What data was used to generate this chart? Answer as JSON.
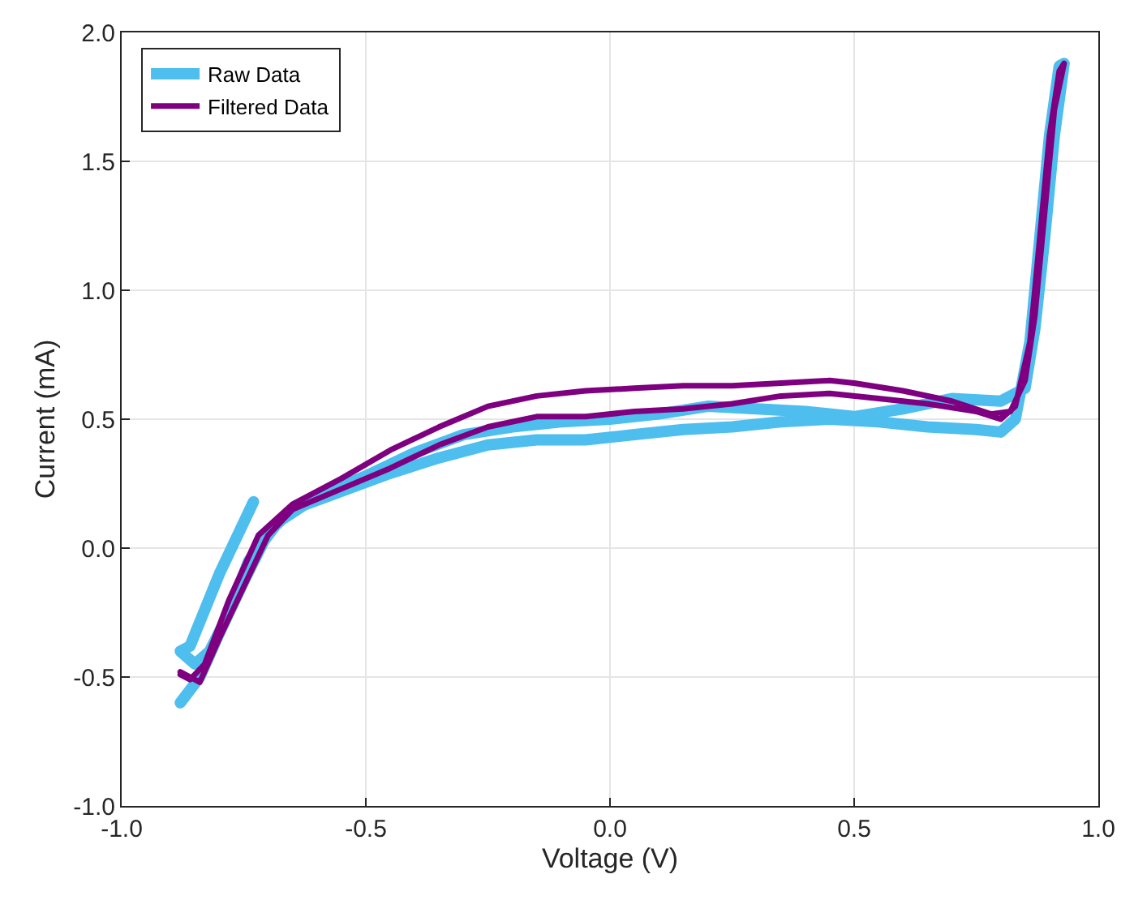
{
  "chart_data": {
    "type": "line",
    "xlabel": "Voltage (V)",
    "ylabel": "Current (mA)",
    "xlim": [
      -1,
      1
    ],
    "xticks": [
      {
        "value": -1,
        "label": "-1.0"
      },
      {
        "value": -0.5,
        "label": "-0.5"
      },
      {
        "value": 0,
        "label": "0.0"
      },
      {
        "value": 0.5,
        "label": "0.5"
      },
      {
        "value": 1,
        "label": "1.0"
      }
    ],
    "ylim": [
      -1,
      2
    ],
    "yticks": [
      {
        "value": -1,
        "label": "-1.0"
      },
      {
        "value": -0.5,
        "label": "-0.5"
      },
      {
        "value": 0,
        "label": "0.0"
      },
      {
        "value": 0.5,
        "label": "0.5"
      },
      {
        "value": 1,
        "label": "1.0"
      },
      {
        "value": 1.5,
        "label": "1.5"
      },
      {
        "value": 2,
        "label": "2.0"
      }
    ],
    "grid": true,
    "legend": "top left",
    "marker": "none",
    "line_style": "solid",
    "series": [
      {
        "name": "Raw Data",
        "color": "#4dbeee",
        "x": [
          -0.88,
          -0.86,
          -0.84,
          -0.8,
          -0.75,
          -0.7,
          -0.65,
          -0.55,
          -0.45,
          -0.35,
          -0.25,
          -0.15,
          -0.05,
          0.05,
          0.15,
          0.25,
          0.35,
          0.45,
          0.55,
          0.65,
          0.75,
          0.8,
          0.83,
          0.86,
          0.88,
          0.9,
          0.92,
          0.93,
          0.91,
          0.89,
          0.87,
          0.85,
          0.8,
          0.7,
          0.6,
          0.5,
          0.4,
          0.3,
          0.2,
          0.1,
          0.0,
          -0.1,
          -0.2,
          -0.3,
          -0.4,
          -0.5,
          -0.6,
          -0.68,
          -0.74,
          -0.78,
          -0.82,
          -0.85,
          -0.88,
          -0.86,
          -0.8,
          -0.73
        ],
        "values": [
          -0.6,
          -0.55,
          -0.5,
          -0.33,
          -0.13,
          0.06,
          0.15,
          0.22,
          0.29,
          0.35,
          0.4,
          0.42,
          0.42,
          0.44,
          0.46,
          0.47,
          0.49,
          0.5,
          0.49,
          0.47,
          0.46,
          0.45,
          0.5,
          0.8,
          1.2,
          1.6,
          1.87,
          1.88,
          1.6,
          1.2,
          0.85,
          0.62,
          0.57,
          0.58,
          0.54,
          0.51,
          0.53,
          0.54,
          0.55,
          0.52,
          0.5,
          0.49,
          0.47,
          0.44,
          0.37,
          0.28,
          0.2,
          0.1,
          -0.05,
          -0.25,
          -0.4,
          -0.45,
          -0.4,
          -0.38,
          -0.1,
          0.18
        ]
      },
      {
        "name": "Filtered Data",
        "color": "#7e0080",
        "x": [
          -0.88,
          -0.86,
          -0.84,
          -0.8,
          -0.75,
          -0.7,
          -0.65,
          -0.55,
          -0.45,
          -0.35,
          -0.25,
          -0.15,
          -0.05,
          0.05,
          0.15,
          0.25,
          0.35,
          0.45,
          0.55,
          0.65,
          0.75,
          0.8,
          0.83,
          0.86,
          0.88,
          0.9,
          0.92,
          0.93,
          0.91,
          0.89,
          0.87,
          0.85,
          0.82,
          0.78,
          0.7,
          0.6,
          0.5,
          0.45,
          0.35,
          0.25,
          0.15,
          0.05,
          -0.05,
          -0.15,
          -0.25,
          -0.35,
          -0.45,
          -0.55,
          -0.65,
          -0.72,
          -0.78,
          -0.83,
          -0.86,
          -0.88
        ],
        "values": [
          -0.48,
          -0.5,
          -0.52,
          -0.35,
          -0.15,
          0.05,
          0.15,
          0.23,
          0.31,
          0.4,
          0.47,
          0.51,
          0.51,
          0.53,
          0.54,
          0.56,
          0.59,
          0.6,
          0.58,
          0.56,
          0.53,
          0.5,
          0.55,
          0.8,
          1.2,
          1.6,
          1.85,
          1.88,
          1.7,
          1.3,
          0.9,
          0.65,
          0.53,
          0.52,
          0.57,
          0.61,
          0.64,
          0.65,
          0.64,
          0.63,
          0.63,
          0.62,
          0.61,
          0.59,
          0.55,
          0.47,
          0.38,
          0.27,
          0.17,
          0.05,
          -0.2,
          -0.45,
          -0.51,
          -0.49
        ]
      }
    ]
  }
}
